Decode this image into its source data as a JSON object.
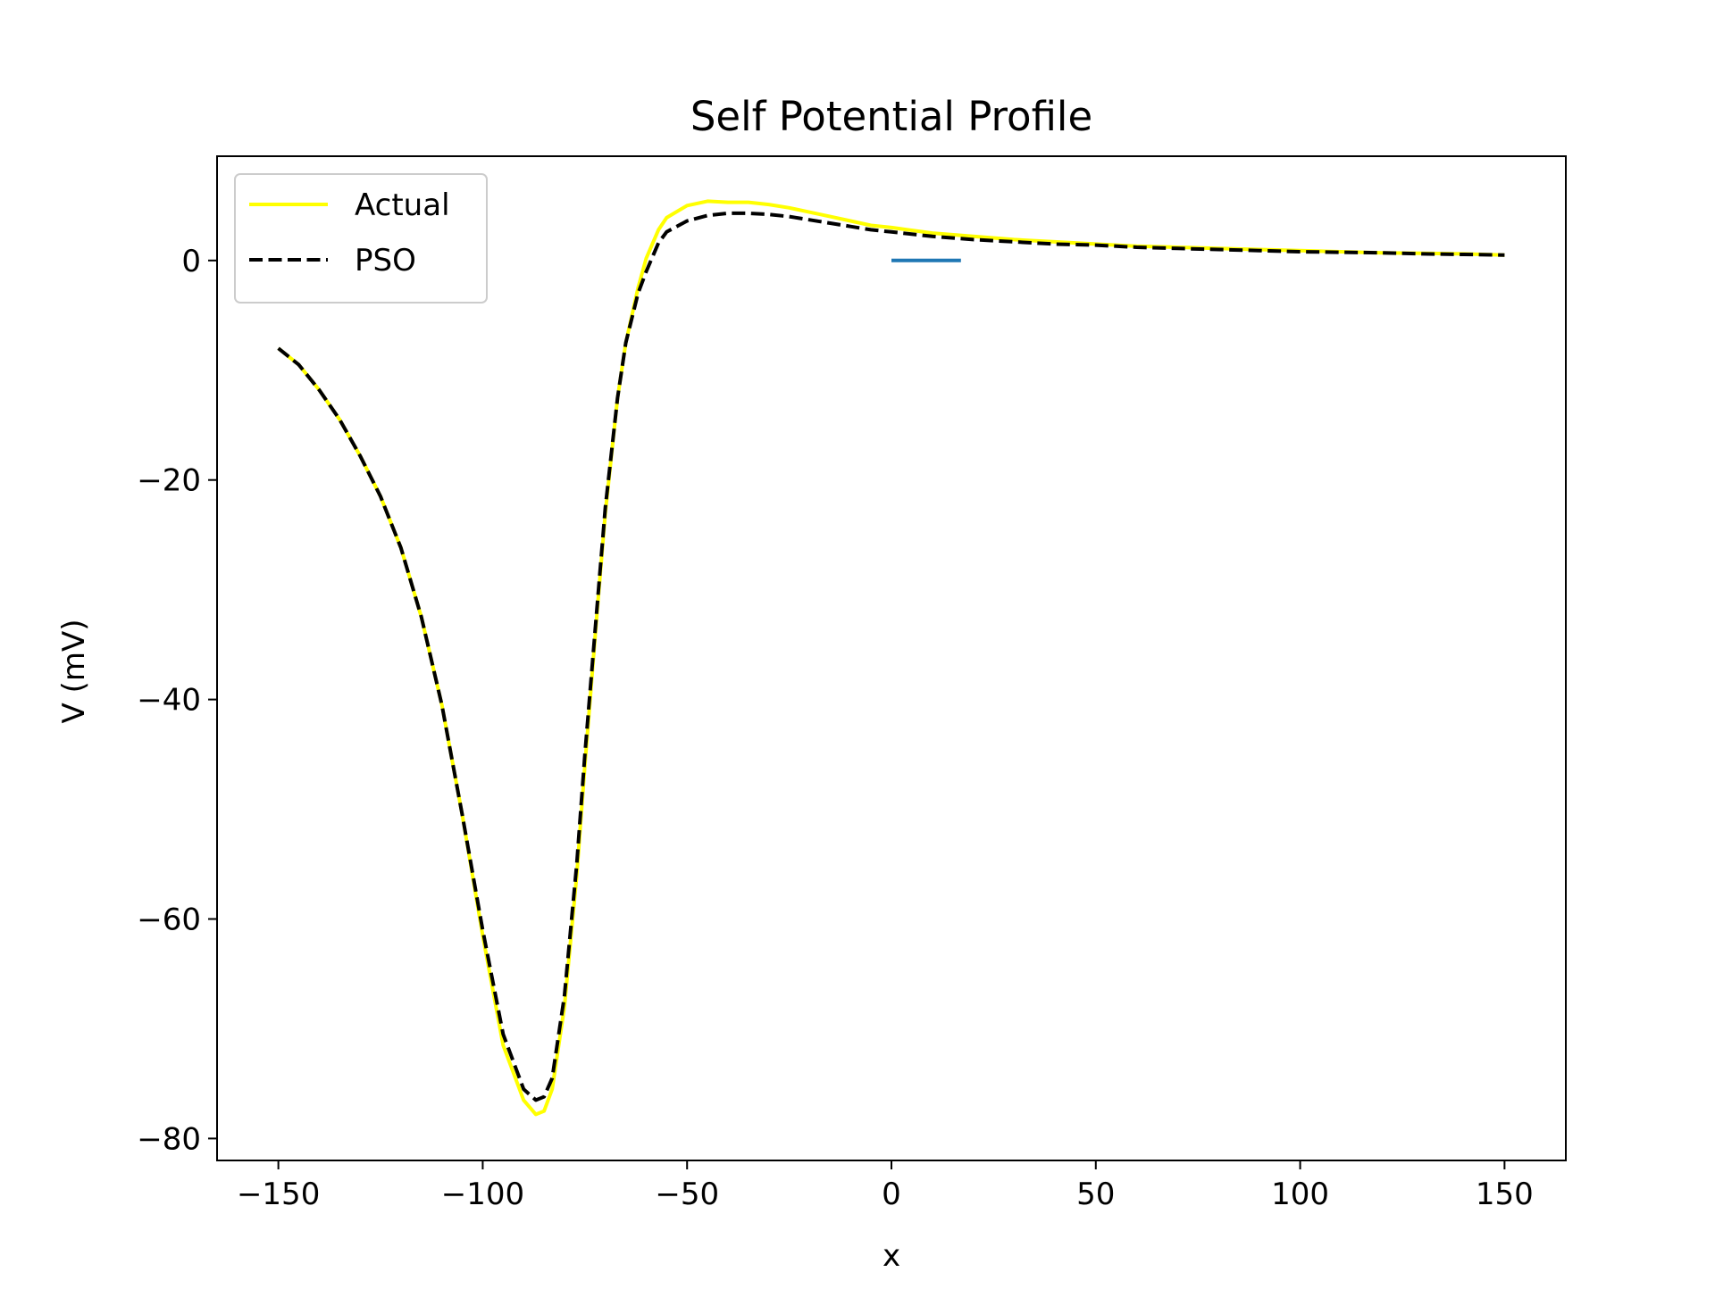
{
  "chart_data": {
    "type": "line",
    "title": "Self Potential Profile",
    "xlabel": "x",
    "ylabel": "V (mV)",
    "xlim": [
      -165,
      165
    ],
    "ylim": [
      -82,
      9.5
    ],
    "xticks": [
      -150,
      -100,
      -50,
      0,
      50,
      100,
      150
    ],
    "xtick_labels": [
      "−150",
      "−100",
      "−50",
      "0",
      "50",
      "100",
      "150"
    ],
    "yticks": [
      0,
      -20,
      -40,
      -60,
      -80
    ],
    "ytick_labels": [
      "0",
      "−20",
      "−40",
      "−60",
      "−80"
    ],
    "grid": false,
    "legend_position": "top-left",
    "series": [
      {
        "name": "Actual",
        "color": "#ffff00",
        "style": "solid",
        "x": [
          -150,
          -145,
          -140,
          -135,
          -130,
          -125,
          -120,
          -115,
          -110,
          -105,
          -100,
          -95,
          -90,
          -87,
          -85,
          -83,
          -80,
          -77,
          -75,
          -72,
          -70,
          -67,
          -65,
          -62,
          -60,
          -57,
          -55,
          -50,
          -45,
          -40,
          -35,
          -30,
          -25,
          -20,
          -15,
          -10,
          -5,
          0,
          10,
          20,
          30,
          40,
          50,
          60,
          70,
          80,
          90,
          100,
          110,
          120,
          130,
          140,
          150
        ],
        "y": [
          -8,
          -9.5,
          -11.8,
          -14.5,
          -17.8,
          -21.5,
          -26.2,
          -32.5,
          -40.5,
          -50.5,
          -61.5,
          -71.5,
          -76.5,
          -77.8,
          -77.5,
          -75.5,
          -68,
          -56,
          -46,
          -32,
          -23,
          -12.5,
          -7.5,
          -2.5,
          0.2,
          2.8,
          3.9,
          5,
          5.4,
          5.3,
          5.3,
          5.1,
          4.8,
          4.4,
          4,
          3.6,
          3.2,
          3,
          2.5,
          2.2,
          1.9,
          1.7,
          1.5,
          1.3,
          1.2,
          1.1,
          1,
          0.9,
          0.8,
          0.7,
          0.65,
          0.6,
          0.5
        ]
      },
      {
        "name": "PSO",
        "color": "#000000",
        "style": "dashed",
        "x": [
          -150,
          -145,
          -140,
          -135,
          -130,
          -125,
          -120,
          -115,
          -110,
          -105,
          -100,
          -95,
          -90,
          -87,
          -85,
          -83,
          -80,
          -77,
          -75,
          -72,
          -70,
          -67,
          -65,
          -62,
          -60,
          -57,
          -55,
          -50,
          -45,
          -40,
          -35,
          -30,
          -25,
          -20,
          -15,
          -10,
          -5,
          0,
          10,
          20,
          30,
          40,
          50,
          60,
          70,
          80,
          90,
          100,
          110,
          120,
          130,
          140,
          150
        ],
        "y": [
          -8,
          -9.5,
          -11.8,
          -14.5,
          -17.8,
          -21.5,
          -26.2,
          -32.5,
          -40.5,
          -50.5,
          -61,
          -70.5,
          -75.5,
          -76.5,
          -76.2,
          -74.5,
          -67,
          -55,
          -45,
          -31.5,
          -22.5,
          -12.5,
          -7.5,
          -3,
          -1,
          1.6,
          2.6,
          3.6,
          4.1,
          4.3,
          4.3,
          4.2,
          4,
          3.7,
          3.4,
          3.1,
          2.8,
          2.6,
          2.2,
          1.9,
          1.7,
          1.5,
          1.4,
          1.2,
          1.1,
          1,
          0.9,
          0.8,
          0.75,
          0.7,
          0.6,
          0.55,
          0.5
        ]
      },
      {
        "color": "#1f77b4",
        "style": "solid",
        "x": [
          0,
          17
        ],
        "y": [
          0,
          0
        ]
      }
    ]
  }
}
